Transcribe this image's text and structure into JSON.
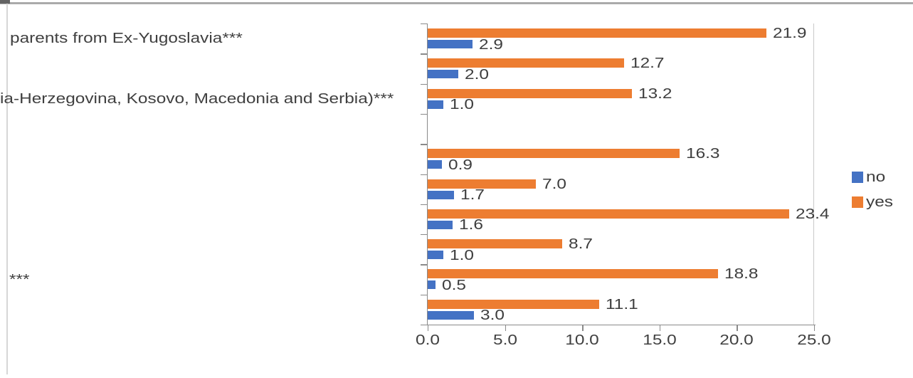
{
  "chart_data": {
    "type": "bar",
    "orientation": "horizontal",
    "title": "",
    "xlabel": "",
    "ylabel": "",
    "xlim": [
      0,
      25
    ],
    "x_ticks": [
      0,
      5,
      10,
      15,
      20,
      25
    ],
    "x_tick_labels": [
      "0.0",
      "5.0",
      "10.0",
      "15.0",
      "20.0",
      "25.0"
    ],
    "grid": false,
    "data_labels": true,
    "categories": [
      "parents from Ex-Yugoslavia***",
      "",
      "ia-Herzegovina, Kosovo, Macedonia and Serbia)***",
      "",
      "",
      "",
      "",
      "",
      "***",
      ""
    ],
    "series": [
      {
        "name": "no",
        "color": "#4472C4",
        "values": [
          2.9,
          2.0,
          1.0,
          null,
          0.9,
          1.7,
          1.6,
          1.0,
          0.5,
          3.0
        ]
      },
      {
        "name": "yes",
        "color": "#ED7D31",
        "values": [
          21.9,
          12.7,
          13.2,
          null,
          16.3,
          7.0,
          23.4,
          8.7,
          18.8,
          11.1
        ]
      }
    ],
    "legend": {
      "position": "right",
      "entries": [
        "no",
        "yes"
      ]
    }
  },
  "colors": {
    "no": "#4472C4",
    "yes": "#ED7D31",
    "axis": "#8a8a8a",
    "plot_border": "#c9c9c9",
    "text": "#3d3d3d"
  }
}
